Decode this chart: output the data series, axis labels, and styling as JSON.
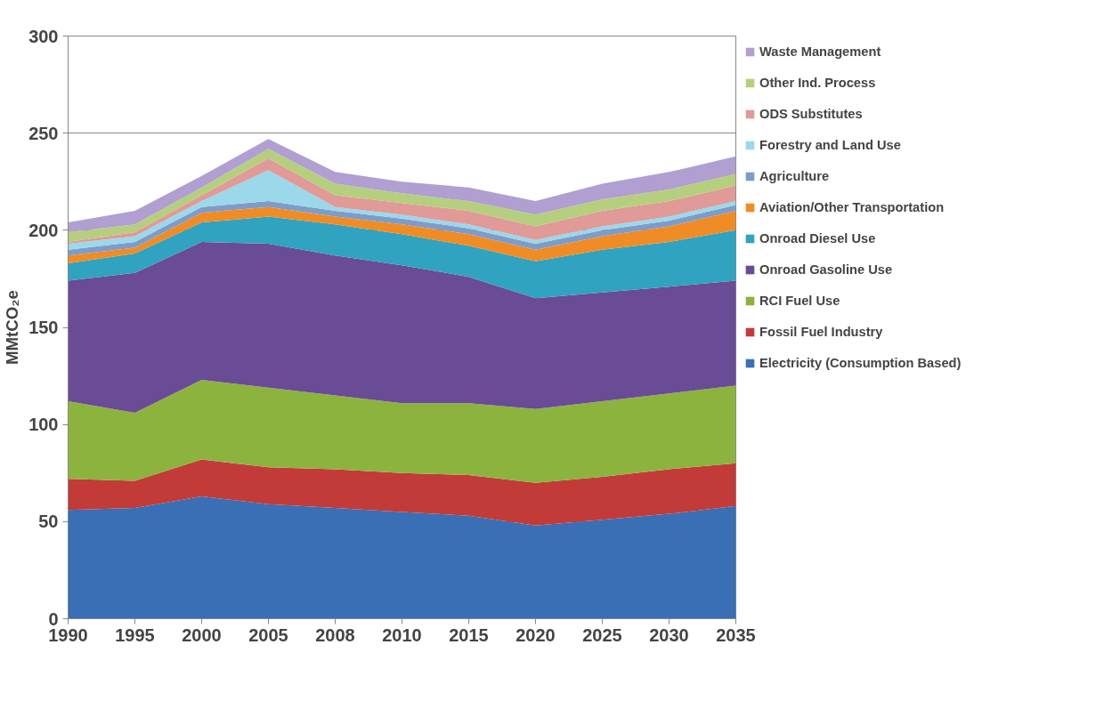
{
  "chart_data": {
    "type": "area",
    "stacked": true,
    "ylabel": "MMtCO₂e",
    "categories": [
      "1990",
      "1995",
      "2000",
      "2005",
      "2008",
      "2010",
      "2015",
      "2020",
      "2025",
      "2030",
      "2035"
    ],
    "ylim": [
      0,
      300
    ],
    "yticks": [
      0,
      50,
      100,
      150,
      200,
      250,
      300
    ],
    "grid": "y",
    "legend": "right",
    "series": [
      {
        "name": "Electricity (Consumption Based)",
        "color": "#3a6fb5",
        "values": [
          56,
          57,
          63,
          59,
          57,
          55,
          53,
          48,
          51,
          54,
          58
        ]
      },
      {
        "name": "Fossil Fuel Industry",
        "color": "#c23b38",
        "values": [
          16,
          14,
          19,
          19,
          20,
          20,
          21,
          22,
          22,
          23,
          22
        ]
      },
      {
        "name": "RCI Fuel Use",
        "color": "#8db33f",
        "values": [
          40,
          35,
          41,
          41,
          38,
          36,
          37,
          38,
          39,
          39,
          40
        ]
      },
      {
        "name": "Onroad Gasoline Use",
        "color": "#6a4b95",
        "values": [
          62,
          72,
          71,
          74,
          72,
          71,
          65,
          57,
          56,
          55,
          54
        ]
      },
      {
        "name": "Onroad Diesel Use",
        "color": "#2fa3c0",
        "values": [
          9,
          10,
          10,
          14,
          16,
          16,
          16,
          19,
          22,
          23,
          26
        ]
      },
      {
        "name": "Aviation/Other Transportation",
        "color": "#f08c26",
        "values": [
          4,
          3,
          5,
          5,
          4,
          5,
          6,
          6,
          7,
          8,
          10
        ]
      },
      {
        "name": "Agriculture",
        "color": "#7f9cc8",
        "values": [
          3,
          3,
          3,
          3,
          3,
          3,
          3,
          3,
          3,
          3,
          3
        ]
      },
      {
        "name": "Forestry and Land Use",
        "color": "#9bd8ea",
        "values": [
          3,
          3,
          3,
          16,
          2,
          2,
          2,
          2,
          2,
          2,
          2
        ]
      },
      {
        "name": "ODS Substitutes",
        "color": "#e09a98",
        "values": [
          1,
          2,
          3,
          6,
          6,
          6,
          7,
          7,
          8,
          8,
          8
        ]
      },
      {
        "name": "Other Ind. Process",
        "color": "#b5cf7e",
        "values": [
          5,
          4,
          4,
          5,
          6,
          5,
          5,
          6,
          6,
          6,
          6
        ]
      },
      {
        "name": "Waste Management",
        "color": "#b09fd0",
        "values": [
          5,
          7,
          6,
          5,
          6,
          6,
          7,
          7,
          8,
          9,
          9
        ]
      }
    ]
  }
}
